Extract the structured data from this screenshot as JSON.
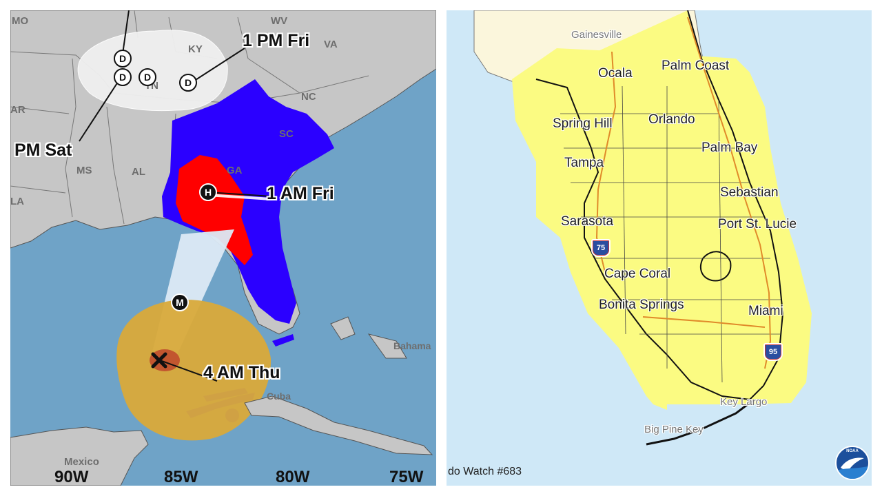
{
  "left_map": {
    "states": [
      "MO",
      "WV",
      "KY",
      "VA",
      "TN",
      "AR",
      "NC",
      "SC",
      "MS",
      "AL",
      "GA",
      "LA"
    ],
    "places": [
      "Bahama",
      "Cuba",
      "Mexico"
    ],
    "forecast_points": [
      {
        "symbol": "D",
        "label": "1 PM Fri"
      },
      {
        "symbol": "D",
        "label": "PM Sat"
      },
      {
        "symbol": "H",
        "label": "1 AM Fri"
      },
      {
        "symbol": "M",
        "label": ""
      },
      {
        "symbol": "X",
        "label": "4 AM Thu"
      }
    ],
    "extra_d_symbols": [
      "D",
      "D"
    ],
    "longitudes": [
      "90W",
      "85W",
      "80W",
      "75W"
    ],
    "colors": {
      "ocean": "#6fa3c7",
      "land": "#c6c6c6",
      "hurricane_warning": "#ff0000",
      "tropical_storm_warning": "#2b00ff",
      "cone": "#d9aa3a",
      "depression_area": "#f0f0f0"
    }
  },
  "right_map": {
    "cities": [
      "Gainesville",
      "Ocala",
      "Palm Coast",
      "Spring Hill",
      "Orlando",
      "Palm Bay",
      "Tampa",
      "Sebastian",
      "Sarasota",
      "Port St. Lucie",
      "Cape Coral",
      "Bonita Springs",
      "Miami",
      "Key Largo",
      "Big Pine Key"
    ],
    "interstates": [
      "75",
      "95"
    ],
    "watch_label": "do Watch #683",
    "logo_text": "NOAA",
    "colors": {
      "ocean": "#cfe8f7",
      "watch_area": "#fbfb82",
      "outside_land": "#fbf6dc"
    }
  }
}
